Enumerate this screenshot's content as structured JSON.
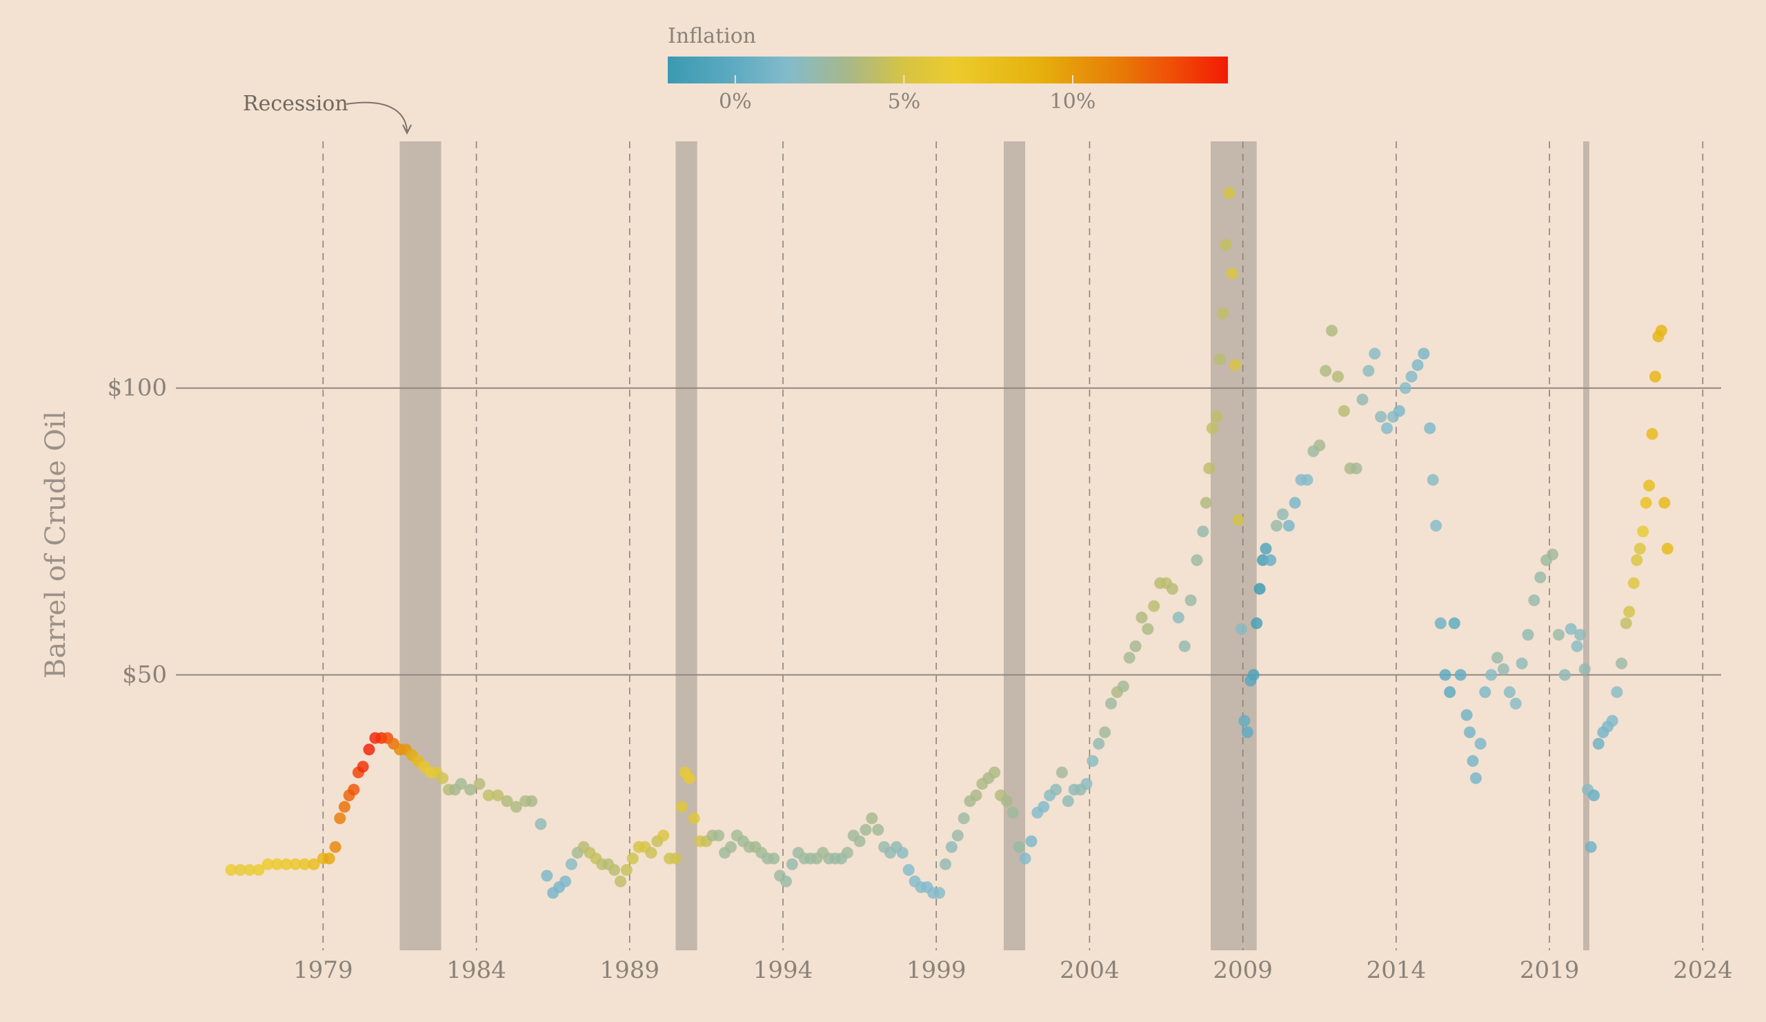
{
  "chart_data": {
    "type": "scatter",
    "title": "",
    "ylabel": "Barrel of Crude Oil",
    "xlabel": "",
    "x_ticks": [
      "1979",
      "1984",
      "1989",
      "1994",
      "1999",
      "2004",
      "2009",
      "2014",
      "2019",
      "2024"
    ],
    "y_ticks": [
      {
        "value": 50,
        "label": "$50"
      },
      {
        "value": 100,
        "label": "$100"
      }
    ],
    "xlim": [
      1974.2,
      2024.6
    ],
    "ylim": [
      2,
      143
    ],
    "grid": {
      "x": "dashed",
      "y": "solid"
    },
    "legend": {
      "title": "Inflation",
      "placement": "top-center",
      "type": "colorbar",
      "ticks": [
        {
          "value": 0,
          "label": "0%"
        },
        {
          "value": 5,
          "label": "5%"
        },
        {
          "value": 10,
          "label": "10%"
        }
      ],
      "range": [
        -2,
        14.6
      ],
      "colors": [
        {
          "v": -2,
          "c": "#3a9ab1"
        },
        {
          "v": 0,
          "c": "#5eabc2"
        },
        {
          "v": 1.6,
          "c": "#84bbcb"
        },
        {
          "v": 3.4,
          "c": "#a9b887"
        },
        {
          "v": 5,
          "c": "#d6c443"
        },
        {
          "v": 6.5,
          "c": "#eccb2d"
        },
        {
          "v": 9,
          "c": "#e5b10d"
        },
        {
          "v": 11.5,
          "c": "#e87807"
        },
        {
          "v": 13,
          "c": "#f04c07"
        },
        {
          "v": 14.6,
          "c": "#f21b04"
        }
      ]
    },
    "annotation": {
      "text": "Recession"
    },
    "recessions": [
      [
        1981.5,
        1982.85
      ],
      [
        1990.5,
        1991.2
      ],
      [
        2001.2,
        2001.9
      ],
      [
        2007.95,
        2009.45
      ],
      [
        2020.1,
        2020.3
      ]
    ],
    "data": [
      [
        1976.0,
        16,
        6.5
      ],
      [
        1976.3,
        16,
        6.0
      ],
      [
        1976.6,
        16,
        6.2
      ],
      [
        1976.9,
        16,
        6.6
      ],
      [
        1977.2,
        17,
        6.5
      ],
      [
        1977.5,
        17,
        6.7
      ],
      [
        1977.8,
        17,
        6.8
      ],
      [
        1978.1,
        17,
        6.9
      ],
      [
        1978.4,
        17,
        7.2
      ],
      [
        1978.7,
        17,
        7.8
      ],
      [
        1979.0,
        18,
        8.5
      ],
      [
        1979.2,
        18,
        9.5
      ],
      [
        1979.4,
        20,
        10.8
      ],
      [
        1979.55,
        25,
        11.3
      ],
      [
        1979.7,
        27,
        11.8
      ],
      [
        1979.85,
        29,
        12.2
      ],
      [
        1980.0,
        30,
        12.7
      ],
      [
        1980.15,
        33,
        13.3
      ],
      [
        1980.3,
        34,
        14.0
      ],
      [
        1980.5,
        37,
        14.5
      ],
      [
        1980.7,
        39,
        14.3
      ],
      [
        1980.9,
        39,
        13.9
      ],
      [
        1981.1,
        39,
        13.0
      ],
      [
        1981.3,
        38,
        11.8
      ],
      [
        1981.5,
        37,
        10.8
      ],
      [
        1981.7,
        37,
        10.2
      ],
      [
        1981.9,
        36,
        9.2
      ],
      [
        1982.1,
        35,
        8.1
      ],
      [
        1982.3,
        34,
        7.0
      ],
      [
        1982.5,
        33,
        6.4
      ],
      [
        1982.7,
        33,
        5.9
      ],
      [
        1982.9,
        32,
        4.7
      ],
      [
        1983.1,
        30,
        3.8
      ],
      [
        1983.3,
        30,
        3.3
      ],
      [
        1983.5,
        31,
        3.0
      ],
      [
        1983.8,
        30,
        3.2
      ],
      [
        1984.1,
        31,
        3.8
      ],
      [
        1984.4,
        29,
        4.2
      ],
      [
        1984.7,
        29,
        4.1
      ],
      [
        1985.0,
        28,
        3.7
      ],
      [
        1985.3,
        27,
        3.6
      ],
      [
        1985.6,
        28,
        3.5
      ],
      [
        1985.8,
        28,
        3.4
      ],
      [
        1986.1,
        24,
        2.1
      ],
      [
        1986.3,
        15,
        1.2
      ],
      [
        1986.5,
        12,
        1.0
      ],
      [
        1986.7,
        13,
        1.1
      ],
      [
        1986.9,
        14,
        1.2
      ],
      [
        1987.1,
        17,
        1.8
      ],
      [
        1987.3,
        19,
        3.1
      ],
      [
        1987.5,
        20,
        3.9
      ],
      [
        1987.7,
        19,
        4.2
      ],
      [
        1987.9,
        18,
        4.4
      ],
      [
        1988.1,
        17,
        4.0
      ],
      [
        1988.3,
        17,
        3.9
      ],
      [
        1988.5,
        16,
        4.0
      ],
      [
        1988.7,
        14,
        4.2
      ],
      [
        1988.9,
        16,
        4.5
      ],
      [
        1989.1,
        18,
        4.8
      ],
      [
        1989.3,
        20,
        5.1
      ],
      [
        1989.5,
        20,
        5.0
      ],
      [
        1989.7,
        19,
        4.6
      ],
      [
        1989.9,
        21,
        4.5
      ],
      [
        1990.1,
        22,
        5.2
      ],
      [
        1990.3,
        18,
        4.7
      ],
      [
        1990.5,
        18,
        4.8
      ],
      [
        1990.7,
        27,
        5.6
      ],
      [
        1990.8,
        33,
        6.2
      ],
      [
        1990.95,
        32,
        6.3
      ],
      [
        1991.1,
        25,
        5.7
      ],
      [
        1991.3,
        21,
        4.9
      ],
      [
        1991.5,
        21,
        4.4
      ],
      [
        1991.7,
        22,
        3.4
      ],
      [
        1991.9,
        22,
        3.1
      ],
      [
        1992.1,
        19,
        2.8
      ],
      [
        1992.3,
        20,
        3.0
      ],
      [
        1992.5,
        22,
        3.1
      ],
      [
        1992.7,
        21,
        3.0
      ],
      [
        1992.9,
        20,
        3.1
      ],
      [
        1993.1,
        20,
        3.2
      ],
      [
        1993.3,
        19,
        3.0
      ],
      [
        1993.5,
        18,
        2.8
      ],
      [
        1993.7,
        18,
        2.8
      ],
      [
        1993.9,
        15,
        2.7
      ],
      [
        1994.1,
        14,
        2.5
      ],
      [
        1994.3,
        17,
        2.4
      ],
      [
        1994.5,
        19,
        2.6
      ],
      [
        1994.7,
        18,
        2.8
      ],
      [
        1994.9,
        18,
        2.7
      ],
      [
        1995.1,
        18,
        2.9
      ],
      [
        1995.3,
        19,
        3.1
      ],
      [
        1995.5,
        18,
        2.8
      ],
      [
        1995.7,
        18,
        2.6
      ],
      [
        1995.9,
        18,
        2.6
      ],
      [
        1996.1,
        19,
        2.8
      ],
      [
        1996.3,
        22,
        2.9
      ],
      [
        1996.5,
        21,
        2.9
      ],
      [
        1996.7,
        23,
        3.0
      ],
      [
        1996.9,
        25,
        3.3
      ],
      [
        1997.1,
        23,
        3.0
      ],
      [
        1997.3,
        20,
        2.5
      ],
      [
        1997.5,
        19,
        2.3
      ],
      [
        1997.7,
        20,
        2.2
      ],
      [
        1997.9,
        19,
        1.9
      ],
      [
        1998.1,
        16,
        1.6
      ],
      [
        1998.3,
        14,
        1.6
      ],
      [
        1998.5,
        13,
        1.6
      ],
      [
        1998.7,
        13,
        1.5
      ],
      [
        1998.9,
        12,
        1.6
      ],
      [
        1999.1,
        12,
        1.7
      ],
      [
        1999.3,
        17,
        2.3
      ],
      [
        1999.5,
        20,
        2.1
      ],
      [
        1999.7,
        22,
        2.5
      ],
      [
        1999.9,
        25,
        2.7
      ],
      [
        2000.1,
        28,
        3.2
      ],
      [
        2000.3,
        29,
        3.4
      ],
      [
        2000.5,
        31,
        3.5
      ],
      [
        2000.7,
        32,
        3.4
      ],
      [
        2000.9,
        33,
        3.5
      ],
      [
        2001.1,
        29,
        3.7
      ],
      [
        2001.3,
        28,
        3.3
      ],
      [
        2001.5,
        26,
        2.9
      ],
      [
        2001.7,
        20,
        2.6
      ],
      [
        2001.9,
        18,
        1.6
      ],
      [
        2002.1,
        21,
        1.2
      ],
      [
        2002.3,
        26,
        1.6
      ],
      [
        2002.5,
        27,
        1.5
      ],
      [
        2002.7,
        29,
        1.8
      ],
      [
        2002.9,
        30,
        2.2
      ],
      [
        2003.1,
        33,
        3.0
      ],
      [
        2003.3,
        28,
        2.1
      ],
      [
        2003.5,
        30,
        2.1
      ],
      [
        2003.7,
        30,
        2.3
      ],
      [
        2003.9,
        31,
        1.9
      ],
      [
        2004.1,
        35,
        1.9
      ],
      [
        2004.3,
        38,
        2.3
      ],
      [
        2004.5,
        40,
        3.0
      ],
      [
        2004.7,
        45,
        2.7
      ],
      [
        2004.9,
        47,
        3.5
      ],
      [
        2005.1,
        48,
        3.0
      ],
      [
        2005.3,
        53,
        3.1
      ],
      [
        2005.5,
        55,
        3.2
      ],
      [
        2005.7,
        60,
        3.6
      ],
      [
        2005.9,
        58,
        3.5
      ],
      [
        2006.1,
        62,
        4.0
      ],
      [
        2006.3,
        66,
        3.9
      ],
      [
        2006.5,
        66,
        4.1
      ],
      [
        2006.7,
        65,
        3.8
      ],
      [
        2006.9,
        60,
        2.0
      ],
      [
        2007.1,
        55,
        2.4
      ],
      [
        2007.3,
        63,
        2.6
      ],
      [
        2007.5,
        70,
        2.7
      ],
      [
        2007.7,
        75,
        2.4
      ],
      [
        2007.8,
        80,
        3.6
      ],
      [
        2007.9,
        86,
        4.1
      ],
      [
        2008.0,
        93,
        4.3
      ],
      [
        2008.15,
        95,
        4.2
      ],
      [
        2008.25,
        105,
        4.0
      ],
      [
        2008.35,
        113,
        4.3
      ],
      [
        2008.45,
        125,
        4.4
      ],
      [
        2008.55,
        134,
        5.0
      ],
      [
        2008.65,
        120,
        5.4
      ],
      [
        2008.75,
        104,
        5.3
      ],
      [
        2008.85,
        77,
        4.9
      ],
      [
        2008.95,
        58,
        1.8
      ],
      [
        2009.05,
        42,
        0.2
      ],
      [
        2009.15,
        40,
        0.0
      ],
      [
        2009.25,
        49,
        -0.3
      ],
      [
        2009.35,
        50,
        -0.9
      ],
      [
        2009.45,
        59,
        -1.4
      ],
      [
        2009.55,
        65,
        -1.9
      ],
      [
        2009.65,
        70,
        -1.4
      ],
      [
        2009.75,
        72,
        -0.8
      ],
      [
        2009.9,
        70,
        0.3
      ],
      [
        2010.1,
        76,
        2.5
      ],
      [
        2010.3,
        78,
        2.2
      ],
      [
        2010.5,
        76,
        1.1
      ],
      [
        2010.7,
        80,
        1.1
      ],
      [
        2010.9,
        84,
        1.5
      ],
      [
        2011.1,
        84,
        1.6
      ],
      [
        2011.3,
        89,
        2.7
      ],
      [
        2011.5,
        90,
        3.2
      ],
      [
        2011.7,
        103,
        3.5
      ],
      [
        2011.9,
        110,
        3.6
      ],
      [
        2012.1,
        102,
        3.8
      ],
      [
        2012.3,
        96,
        3.9
      ],
      [
        2012.5,
        86,
        3.4
      ],
      [
        2012.7,
        86,
        3.0
      ],
      [
        2012.9,
        98,
        2.3
      ],
      [
        2013.1,
        103,
        1.9
      ],
      [
        2013.3,
        106,
        1.7
      ],
      [
        2013.5,
        95,
        2.0
      ],
      [
        2013.7,
        93,
        1.5
      ],
      [
        2013.9,
        95,
        1.8
      ],
      [
        2014.1,
        96,
        1.2
      ],
      [
        2014.3,
        100,
        1.6
      ],
      [
        2014.5,
        102,
        1.5
      ],
      [
        2014.7,
        104,
        1.3
      ],
      [
        2014.9,
        106,
        1.1
      ],
      [
        2015.1,
        93,
        1.3
      ],
      [
        2015.2,
        84,
        1.7
      ],
      [
        2015.3,
        76,
        1.6
      ],
      [
        2015.45,
        59,
        0.6
      ],
      [
        2015.6,
        50,
        -0.1
      ],
      [
        2015.75,
        47,
        -0.2
      ],
      [
        2015.9,
        59,
        -0.1
      ],
      [
        2016.1,
        50,
        0.1
      ],
      [
        2016.3,
        43,
        0.7
      ],
      [
        2016.4,
        40,
        0.9
      ],
      [
        2016.5,
        35,
        1.0
      ],
      [
        2016.6,
        32,
        1.0
      ],
      [
        2016.75,
        38,
        1.2
      ],
      [
        2016.9,
        47,
        1.3
      ],
      [
        2017.1,
        50,
        1.7
      ],
      [
        2017.3,
        53,
        2.5
      ],
      [
        2017.5,
        51,
        2.3
      ],
      [
        2017.7,
        47,
        1.8
      ],
      [
        2017.9,
        45,
        1.7
      ],
      [
        2018.1,
        52,
        2.1
      ],
      [
        2018.3,
        57,
        2.3
      ],
      [
        2018.5,
        63,
        2.5
      ],
      [
        2018.7,
        67,
        2.5
      ],
      [
        2018.9,
        70,
        2.8
      ],
      [
        2019.1,
        71,
        2.9
      ],
      [
        2019.3,
        57,
        2.6
      ],
      [
        2019.5,
        50,
        2.1
      ],
      [
        2019.7,
        58,
        1.7
      ],
      [
        2019.9,
        55,
        1.8
      ],
      [
        2020.0,
        57,
        2.0
      ],
      [
        2020.15,
        51,
        2.3
      ],
      [
        2020.25,
        30,
        1.8
      ],
      [
        2020.35,
        20,
        0.7
      ],
      [
        2020.45,
        29,
        0.3
      ],
      [
        2020.6,
        38,
        0.6
      ],
      [
        2020.75,
        40,
        1.0
      ],
      [
        2020.9,
        41,
        1.2
      ],
      [
        2021.05,
        42,
        1.4
      ],
      [
        2021.2,
        47,
        1.7
      ],
      [
        2021.35,
        52,
        2.6
      ],
      [
        2021.5,
        59,
        4.2
      ],
      [
        2021.6,
        61,
        4.9
      ],
      [
        2021.75,
        66,
        5.4
      ],
      [
        2021.85,
        70,
        5.3
      ],
      [
        2021.95,
        72,
        5.4
      ],
      [
        2022.05,
        75,
        6.2
      ],
      [
        2022.15,
        80,
        7.5
      ],
      [
        2022.25,
        83,
        7.8
      ],
      [
        2022.35,
        92,
        8.3
      ],
      [
        2022.45,
        102,
        8.6
      ],
      [
        2022.55,
        109,
        8.5
      ],
      [
        2022.65,
        110,
        8.6
      ],
      [
        2022.75,
        80,
        8.2
      ],
      [
        2022.85,
        72,
        8.2
      ]
    ]
  }
}
